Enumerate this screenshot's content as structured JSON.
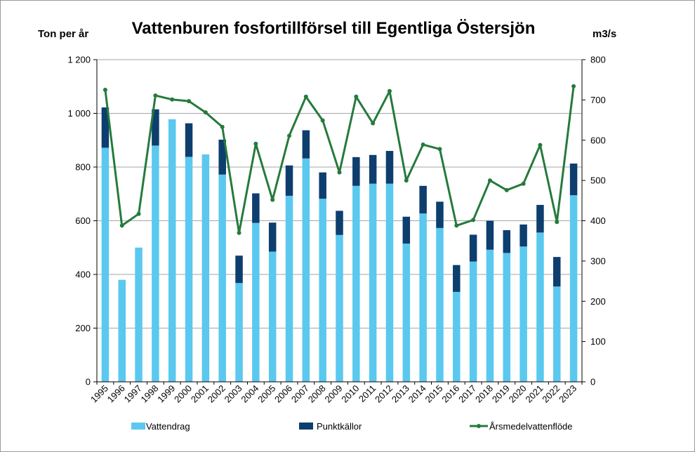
{
  "chart_data": {
    "type": "bar",
    "title": "Vattenburen fosfortillförsel till Egentliga Östersjön",
    "ylabel_left": "Ton per år",
    "ylabel_right": "m3/s",
    "ylim_left": [
      0,
      1200
    ],
    "ylim_right": [
      0,
      800
    ],
    "left_ticks": [
      "0",
      "200",
      "400",
      "600",
      "800",
      "1 000",
      "1 200"
    ],
    "right_ticks": [
      "0",
      "100",
      "200",
      "300",
      "400",
      "500",
      "600",
      "700",
      "800"
    ],
    "grid": true,
    "legend_position": "bottom",
    "stacked": true,
    "categories": [
      "1995",
      "1996",
      "1997",
      "1998",
      "1999",
      "2000",
      "2001",
      "2002",
      "2003",
      "2004",
      "2005",
      "2006",
      "2007",
      "2008",
      "2009",
      "2010",
      "2011",
      "2012",
      "2013",
      "2014",
      "2015",
      "2016",
      "2017",
      "2018",
      "2019",
      "2020",
      "2021",
      "2022",
      "2023"
    ],
    "series": [
      {
        "name": "Vattendrag",
        "type": "bar",
        "axis": "left",
        "color": "#5bc8ef",
        "values": [
          872,
          380,
          500,
          880,
          978,
          838,
          847,
          772,
          368,
          592,
          485,
          693,
          832,
          682,
          547,
          730,
          738,
          738,
          515,
          627,
          573,
          335,
          448,
          492,
          480,
          504,
          556,
          355,
          695
        ]
      },
      {
        "name": "Punktkällor",
        "type": "bar",
        "axis": "left",
        "color": "#0d3e6e",
        "values": [
          150,
          0,
          0,
          135,
          0,
          125,
          0,
          130,
          102,
          110,
          108,
          113,
          105,
          98,
          90,
          107,
          107,
          122,
          100,
          103,
          98,
          100,
          100,
          108,
          85,
          82,
          103,
          110,
          118
        ]
      },
      {
        "name": "Årsmedelvattenflöde",
        "type": "line",
        "axis": "right",
        "color": "#257a3c",
        "values": [
          725,
          388,
          417,
          711,
          701,
          697,
          669,
          633,
          370,
          591,
          452,
          611,
          708,
          649,
          520,
          708,
          642,
          722,
          500,
          589,
          578,
          388,
          402,
          500,
          476,
          492,
          588,
          397,
          734
        ]
      }
    ]
  }
}
